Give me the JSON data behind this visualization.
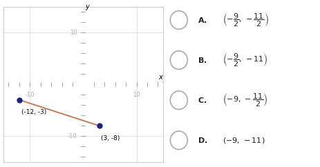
{
  "point1": [
    -12,
    -3
  ],
  "point2": [
    3,
    -8
  ],
  "point1_label": "(-12, -3)",
  "point2_label": "(3, -8)",
  "line_color": "#c47a5a",
  "point_color": "#1a237e",
  "xlim": [
    -15,
    15
  ],
  "ylim": [
    -15,
    15
  ],
  "bg_color": "#ffffff",
  "fig_bg": "#ffffff",
  "border_color": "#cccccc",
  "axis_color": "#999999",
  "tick_label_color": "#aaaaaa",
  "grid_color": "#dddddd",
  "choice_A_main": "$\\mathbf{A.}$",
  "choice_A_math": "$\\left(-\\dfrac{9}{2},\\,-\\dfrac{11}{2}\\right)$",
  "choice_B_main": "$\\mathbf{B.}$",
  "choice_B_math": "$\\left(-\\dfrac{9}{2},\\,-11\\right)$",
  "choice_C_main": "$\\mathbf{C.}$",
  "choice_C_math": "$\\left(-9,\\,-\\dfrac{11}{2}\\right)$",
  "choice_D_main": "$\\mathbf{D.}$",
  "choice_D_math": "$(-9,\\,-11)$"
}
